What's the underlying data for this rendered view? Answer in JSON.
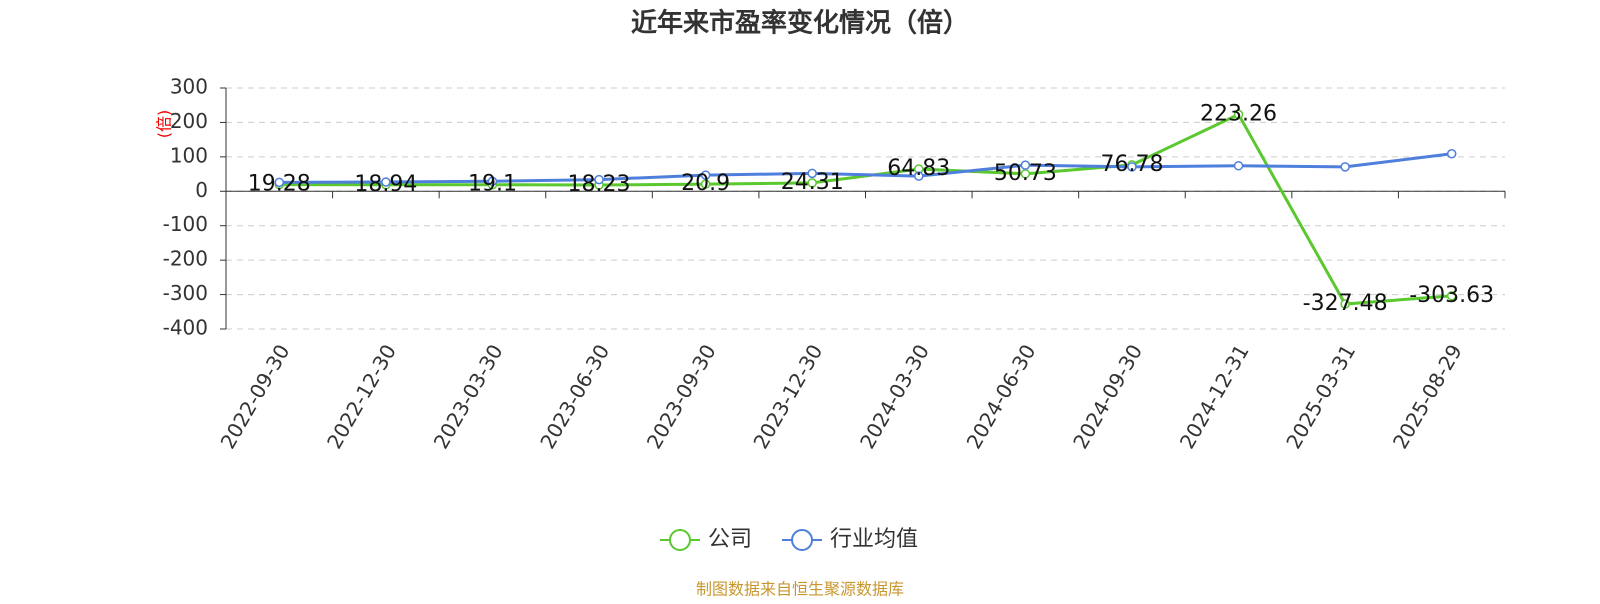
{
  "chart_data": {
    "type": "line",
    "title": "近年来市盈率变化情况（倍）",
    "y_label": "(倍)",
    "categories": [
      "2022-09-30",
      "2022-12-30",
      "2023-03-30",
      "2023-06-30",
      "2023-09-30",
      "2023-12-30",
      "2024-03-30",
      "2024-06-30",
      "2024-09-30",
      "2024-12-31",
      "2025-03-31",
      "2025-08-29"
    ],
    "series": [
      {
        "name": "公司",
        "color": "#5ac82e",
        "values": [
          19.28,
          18.94,
          19.1,
          18.23,
          20.9,
          24.31,
          64.83,
          50.73,
          76.78,
          223.26,
          -327.48,
          -303.63
        ]
      },
      {
        "name": "行业均值",
        "color": "#4f7fdc",
        "values": [
          26,
          27,
          29,
          34,
          47,
          52,
          44,
          76,
          71,
          74,
          71,
          109
        ]
      }
    ],
    "ylim": [
      -400,
      300
    ],
    "yticks": [
      -400,
      -300,
      -200,
      -100,
      0,
      100,
      200,
      300
    ],
    "grid": true,
    "source": "制图数据来自恒生聚源数据库"
  }
}
